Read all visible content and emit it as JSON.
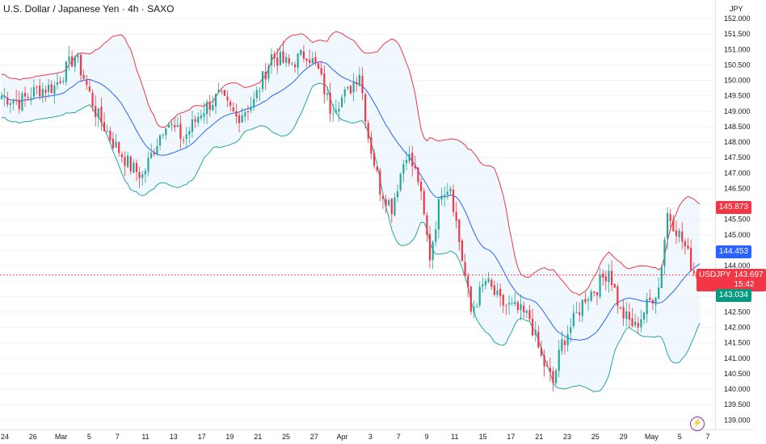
{
  "title": "U.S. Dollar / Japanese Yen · 4h · SAXO",
  "currency": "JPY",
  "colors": {
    "up": "#26a69a",
    "down": "#f23645",
    "upper_band": "#f23645",
    "lower_band": "#26a69a",
    "basis": "#2962ff",
    "band_fill": "#e3f2fd",
    "last_price_line": "#f23645",
    "grid": "#f0f3fa",
    "text": "#131722"
  },
  "price_tags": {
    "upper": {
      "value": "145.873",
      "color": "#f23645"
    },
    "basis": {
      "value": "144.453",
      "color": "#2962ff"
    },
    "last": {
      "symbol": "USDJPY",
      "value": "143.697",
      "countdown": "15:42",
      "color": "#f23645"
    },
    "lower": {
      "value": "143.034",
      "color": "#089981"
    }
  },
  "flash_icon": "lightning-icon",
  "chart_data": {
    "type": "candlestick",
    "title": "U.S. Dollar / Japanese Yen · 4h · SAXO",
    "y_axis_label": "JPY",
    "ylim": [
      138.8,
      152.5
    ],
    "y_ticks": [
      "152.000",
      "151.500",
      "151.000",
      "150.500",
      "150.000",
      "149.500",
      "149.000",
      "148.500",
      "148.000",
      "147.500",
      "147.000",
      "146.500",
      "146.000",
      "145.500",
      "145.000",
      "144.500",
      "144.000",
      "143.500",
      "143.000",
      "142.500",
      "142.000",
      "141.500",
      "141.000",
      "140.500",
      "140.000",
      "139.500",
      "139.000"
    ],
    "x_ticks": [
      "24",
      "26",
      "Mar",
      "5",
      "7",
      "11",
      "13",
      "17",
      "19",
      "21",
      "25",
      "27",
      "Apr",
      "3",
      "7",
      "9",
      "11",
      "15",
      "17",
      "21",
      "23",
      "25",
      "29",
      "May",
      "5",
      "7"
    ],
    "x_range": [
      "Feb 24",
      "May 7"
    ],
    "indicator": "Bollinger Bands",
    "path_points": [
      {
        "i": 0,
        "p": 149.5
      },
      {
        "i": 6,
        "p": 149.3
      },
      {
        "i": 12,
        "p": 149.7
      },
      {
        "i": 18,
        "p": 149.8
      },
      {
        "i": 25,
        "p": 150.8
      },
      {
        "i": 28,
        "p": 150.1
      },
      {
        "i": 32,
        "p": 149.0
      },
      {
        "i": 38,
        "p": 148.0
      },
      {
        "i": 44,
        "p": 147.2
      },
      {
        "i": 48,
        "p": 146.9
      },
      {
        "i": 52,
        "p": 147.8
      },
      {
        "i": 56,
        "p": 148.7
      },
      {
        "i": 62,
        "p": 148.1
      },
      {
        "i": 68,
        "p": 149.0
      },
      {
        "i": 74,
        "p": 149.5
      },
      {
        "i": 80,
        "p": 148.8
      },
      {
        "i": 86,
        "p": 149.3
      },
      {
        "i": 92,
        "p": 150.8
      },
      {
        "i": 98,
        "p": 150.5
      },
      {
        "i": 104,
        "p": 150.9
      },
      {
        "i": 108,
        "p": 150.3
      },
      {
        "i": 112,
        "p": 149.1
      },
      {
        "i": 118,
        "p": 149.6
      },
      {
        "i": 122,
        "p": 150.3
      },
      {
        "i": 125,
        "p": 148.2
      },
      {
        "i": 129,
        "p": 146.5
      },
      {
        "i": 133,
        "p": 145.9
      },
      {
        "i": 138,
        "p": 147.7
      },
      {
        "i": 142,
        "p": 146.8
      },
      {
        "i": 146,
        "p": 144.3
      },
      {
        "i": 150,
        "p": 146.5
      },
      {
        "i": 153,
        "p": 146.6
      },
      {
        "i": 156,
        "p": 144.8
      },
      {
        "i": 160,
        "p": 142.5
      },
      {
        "i": 165,
        "p": 143.5
      },
      {
        "i": 170,
        "p": 142.8
      },
      {
        "i": 175,
        "p": 142.6
      },
      {
        "i": 180,
        "p": 142.3
      },
      {
        "i": 184,
        "p": 141.0
      },
      {
        "i": 188,
        "p": 140.2
      },
      {
        "i": 191,
        "p": 141.5
      },
      {
        "i": 195,
        "p": 142.2
      },
      {
        "i": 199,
        "p": 143.0
      },
      {
        "i": 203,
        "p": 143.3
      },
      {
        "i": 207,
        "p": 143.9
      },
      {
        "i": 211,
        "p": 142.5
      },
      {
        "i": 216,
        "p": 142.0
      },
      {
        "i": 220,
        "p": 142.7
      },
      {
        "i": 224,
        "p": 143.3
      },
      {
        "i": 227,
        "p": 145.7
      },
      {
        "i": 230,
        "p": 145.2
      },
      {
        "i": 233,
        "p": 144.6
      },
      {
        "i": 236,
        "p": 143.8
      },
      {
        "i": 238,
        "p": 143.697
      }
    ]
  }
}
